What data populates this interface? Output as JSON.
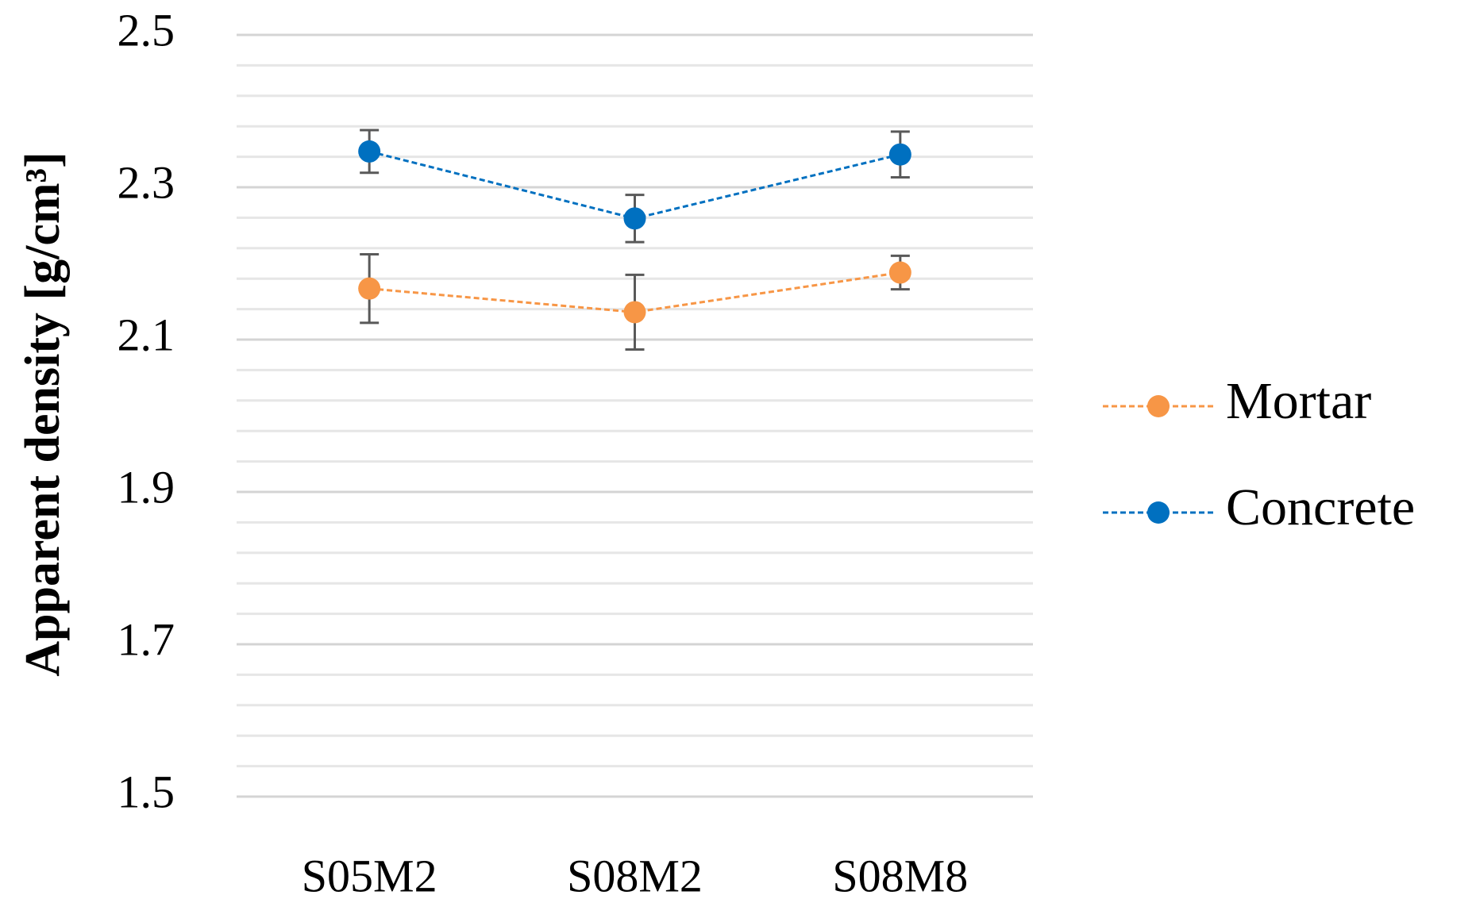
{
  "chart_data": {
    "type": "line",
    "y_label": "Apparent density [g/cm³]",
    "categories": [
      "S05M2",
      "S08M2",
      "S08M8"
    ],
    "series": [
      {
        "name": "Mortar",
        "color": "#f79646",
        "values": [
          2.167,
          2.136,
          2.188
        ],
        "errors": [
          0.045,
          0.049,
          0.022
        ]
      },
      {
        "name": "Concrete",
        "color": "#0070c0",
        "values": [
          2.347,
          2.259,
          2.343
        ],
        "errors": [
          0.028,
          0.031,
          0.03
        ]
      }
    ],
    "ylim": [
      1.5,
      2.5
    ],
    "yticks": [
      1.5,
      1.7,
      1.9,
      2.1,
      2.3,
      2.5
    ],
    "yminorticks": [
      1.54,
      1.58,
      1.62,
      1.66,
      1.74,
      1.78,
      1.82,
      1.86,
      1.94,
      1.98,
      2.02,
      2.06,
      2.14,
      2.18,
      2.22,
      2.26,
      2.34,
      2.38,
      2.42,
      2.46
    ],
    "grid": true,
    "error_bar_color": "#595959",
    "legend": "right"
  }
}
